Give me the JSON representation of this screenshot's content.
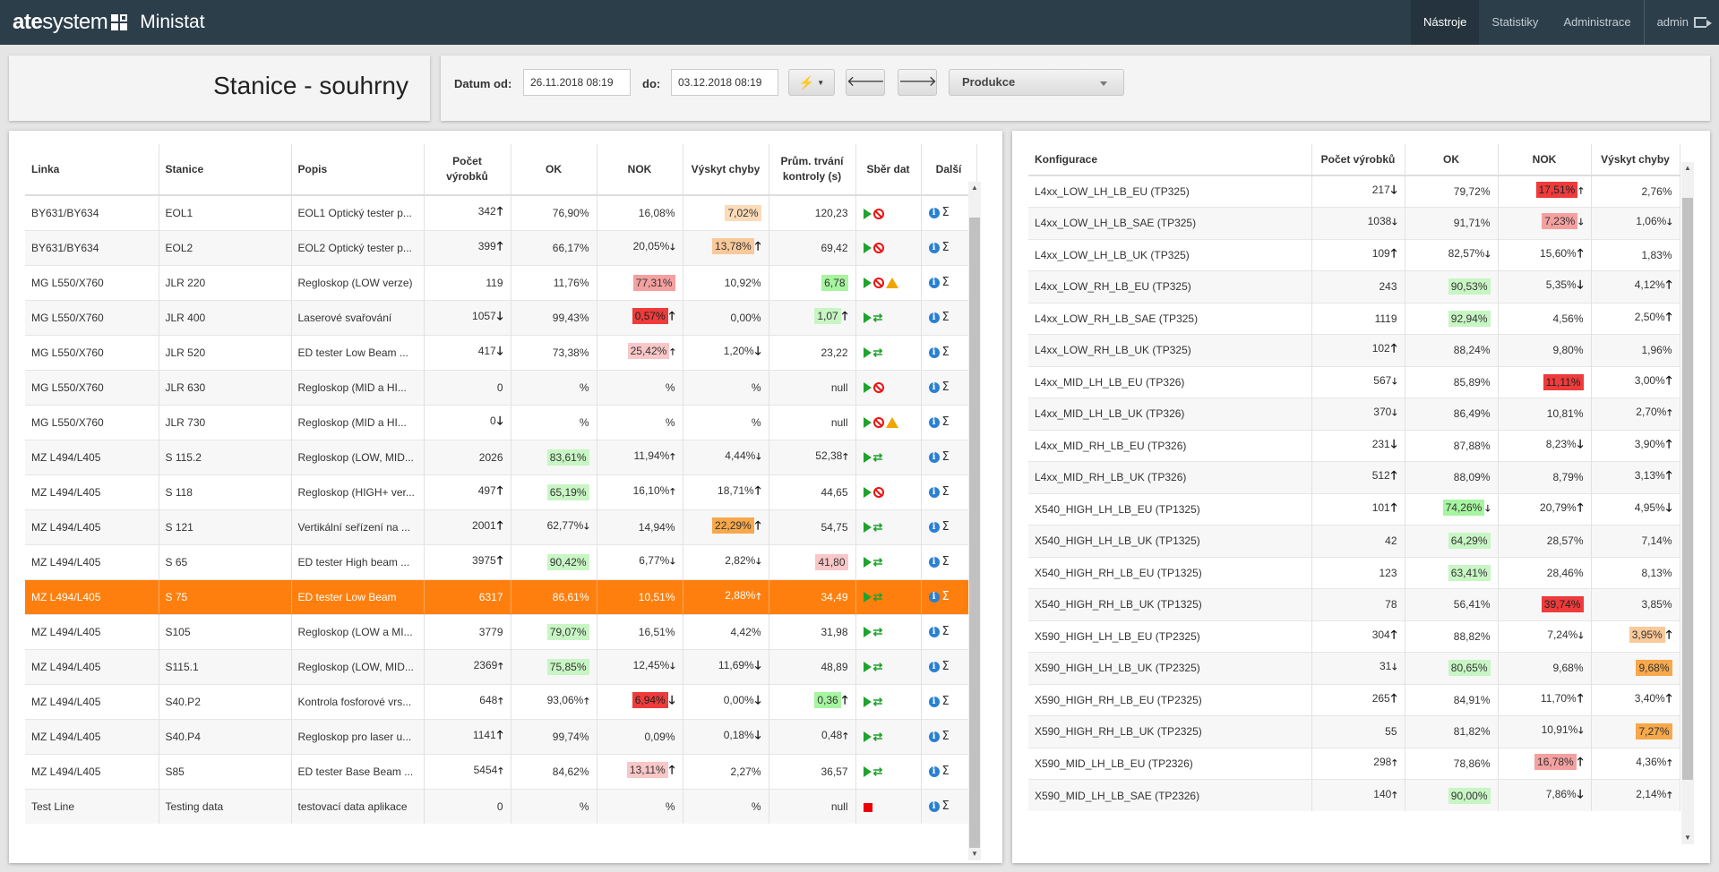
{
  "app": {
    "brand_bold": "ate",
    "brand_light": "system",
    "app_name": "Ministat"
  },
  "nav": {
    "items": [
      "Nástroje",
      "Statistiky",
      "Administrace"
    ],
    "active": "Nástroje",
    "user": "admin"
  },
  "page": {
    "title": "Stanice - souhrny"
  },
  "filter": {
    "from_label": "Datum od:",
    "from_value": "26.11.2018 08:19",
    "to_label": "do:",
    "to_value": "03.12.2018 08:19",
    "quick_icon": "lightning-icon",
    "prev_icon": "arrow-left-icon",
    "next_icon": "arrow-right-icon",
    "select_value": "Produkce"
  },
  "stations_table": {
    "headers": [
      "Linka",
      "Stanice",
      "Popis",
      "Počet výrobků",
      "OK",
      "NOK",
      "Výskyt chyby",
      "Prům. trvání kontroly (s)",
      "Sběr dat",
      "Další"
    ],
    "rows": [
      {
        "linka": "BY631/BY634",
        "stanice": "EOL1",
        "popis": "EOL1 Optický tester p...",
        "pocet": "342",
        "pocet_arrow": "up",
        "ok": "76,90%",
        "ok_arrow": "",
        "ok_hl": "",
        "nok": "16,08%",
        "nok_arrow": "",
        "nok_hl": "",
        "vyskyt": "7,02%",
        "vyskyt_arrow": "",
        "vyskyt_hl": "lorange",
        "prum": "120,23",
        "prum_hl": "",
        "sber": [
          "play",
          "ban"
        ]
      },
      {
        "linka": "BY631/BY634",
        "stanice": "EOL2",
        "popis": "EOL2 Optický tester p...",
        "pocet": "399",
        "pocet_arrow": "up",
        "ok": "66,17%",
        "ok_arrow": "",
        "ok_hl": "",
        "nok": "20,05%",
        "nok_arrow": "down-sm",
        "nok_hl": "",
        "vyskyt": "13,78%",
        "vyskyt_arrow": "up",
        "vyskyt_hl": "peach",
        "prum": "69,42",
        "prum_hl": "",
        "sber": [
          "play",
          "ban"
        ]
      },
      {
        "linka": "MG L550/X760",
        "stanice": "JLR 220",
        "popis": "Regloskop (LOW verze)",
        "pocet": "119",
        "pocet_arrow": "",
        "ok": "11,76%",
        "ok_arrow": "",
        "ok_hl": "",
        "nok": "77,31%",
        "nok_arrow": "",
        "nok_hl": "pink",
        "vyskyt": "10,92%",
        "vyskyt_arrow": "",
        "vyskyt_hl": "",
        "prum": "6,78",
        "prum_hl": "green",
        "sber": [
          "play",
          "ban",
          "warn"
        ]
      },
      {
        "linka": "MG L550/X760",
        "stanice": "JLR 400",
        "popis": "Laserové svařování",
        "pocet": "1057",
        "pocet_arrow": "down",
        "ok": "99,43%",
        "ok_arrow": "",
        "ok_hl": "",
        "nok": "0,57%",
        "nok_arrow": "up",
        "nok_hl": "red",
        "vyskyt": "0,00%",
        "vyskyt_arrow": "",
        "vyskyt_hl": "",
        "prum": "1,07",
        "prum_hl": "lgreen",
        "prum_arrow": "up",
        "sber": [
          "play",
          "sync"
        ]
      },
      {
        "linka": "MG L550/X760",
        "stanice": "JLR 520",
        "popis": "ED tester Low Beam ...",
        "pocet": "417",
        "pocet_arrow": "down",
        "ok": "73,38%",
        "ok_arrow": "",
        "ok_hl": "",
        "nok": "25,42%",
        "nok_arrow": "up-sm",
        "nok_hl": "lpink",
        "vyskyt": "1,20%",
        "vyskyt_arrow": "down",
        "vyskyt_hl": "",
        "prum": "23,22",
        "prum_hl": "",
        "sber": [
          "play",
          "sync"
        ]
      },
      {
        "linka": "MG L550/X760",
        "stanice": "JLR 630",
        "popis": "Regloskop (MID a HI...",
        "pocet": "0",
        "pocet_arrow": "",
        "ok": "%",
        "ok_arrow": "",
        "ok_hl": "",
        "nok": "%",
        "nok_arrow": "",
        "nok_hl": "",
        "vyskyt": "%",
        "vyskyt_arrow": "",
        "vyskyt_hl": "",
        "prum": "null",
        "prum_hl": "",
        "sber": [
          "play",
          "ban"
        ]
      },
      {
        "linka": "MG L550/X760",
        "stanice": "JLR 730",
        "popis": "Regloskop (MID a HI...",
        "pocet": "0",
        "pocet_arrow": "down",
        "ok": "%",
        "ok_arrow": "",
        "ok_hl": "",
        "nok": "%",
        "nok_arrow": "",
        "nok_hl": "",
        "vyskyt": "%",
        "vyskyt_arrow": "",
        "vyskyt_hl": "",
        "prum": "null",
        "prum_hl": "",
        "sber": [
          "play",
          "ban",
          "warn"
        ]
      },
      {
        "linka": "MZ L494/L405",
        "stanice": "S 115.2",
        "popis": "Regloskop (LOW, MID...",
        "pocet": "2026",
        "pocet_arrow": "",
        "ok": "83,61%",
        "ok_arrow": "",
        "ok_hl": "lgreen",
        "nok": "11,94%",
        "nok_arrow": "up-sm",
        "nok_hl": "",
        "vyskyt": "4,44%",
        "vyskyt_arrow": "down-sm",
        "vyskyt_hl": "",
        "prum": "52,38",
        "prum_hl": "",
        "prum_arrow": "up-sm",
        "sber": [
          "play",
          "sync"
        ]
      },
      {
        "linka": "MZ L494/L405",
        "stanice": "S 118",
        "popis": "Regloskop (HIGH+ ver...",
        "pocet": "497",
        "pocet_arrow": "up",
        "ok": "65,19%",
        "ok_arrow": "",
        "ok_hl": "lgreen",
        "nok": "16,10%",
        "nok_arrow": "up-sm",
        "nok_hl": "",
        "vyskyt": "18,71%",
        "vyskyt_arrow": "up",
        "vyskyt_hl": "",
        "prum": "44,65",
        "prum_hl": "",
        "sber": [
          "play",
          "ban"
        ]
      },
      {
        "linka": "MZ L494/L405",
        "stanice": "S 121",
        "popis": "Vertikální seřízení na ...",
        "pocet": "2001",
        "pocet_arrow": "up",
        "ok": "62,77%",
        "ok_arrow": "down-sm",
        "ok_hl": "",
        "nok": "14,94%",
        "nok_arrow": "",
        "nok_hl": "",
        "vyskyt": "22,29%",
        "vyskyt_arrow": "up",
        "vyskyt_hl": "orange",
        "prum": "54,75",
        "prum_hl": "",
        "sber": [
          "play",
          "sync"
        ]
      },
      {
        "linka": "MZ L494/L405",
        "stanice": "S 65",
        "popis": "ED tester High beam ...",
        "pocet": "3975",
        "pocet_arrow": "up",
        "ok": "90,42%",
        "ok_arrow": "",
        "ok_hl": "lgreen",
        "nok": "6,77%",
        "nok_arrow": "down-sm",
        "nok_hl": "",
        "vyskyt": "2,82%",
        "vyskyt_arrow": "down-sm",
        "vyskyt_hl": "",
        "prum": "41,80",
        "prum_hl": "lpink",
        "sber": [
          "play",
          "sync"
        ]
      },
      {
        "linka": "MZ L494/L405",
        "stanice": "S 75",
        "popis": "ED tester Low Beam",
        "pocet": "6317",
        "pocet_arrow": "",
        "ok": "86,61%",
        "ok_arrow": "",
        "ok_hl": "",
        "nok": "10,51%",
        "nok_arrow": "",
        "nok_hl": "",
        "vyskyt": "2,88%",
        "vyskyt_arrow": "up-sm",
        "vyskyt_hl": "",
        "prum": "34,49",
        "prum_hl": "",
        "sber": [
          "play",
          "sync"
        ],
        "selected": true
      },
      {
        "linka": "MZ L494/L405",
        "stanice": "S105",
        "popis": "Regloskop (LOW a MI...",
        "pocet": "3779",
        "pocet_arrow": "",
        "ok": "79,07%",
        "ok_arrow": "",
        "ok_hl": "lgreen",
        "nok": "16,51%",
        "nok_arrow": "",
        "nok_hl": "",
        "vyskyt": "4,42%",
        "vyskyt_arrow": "",
        "vyskyt_hl": "",
        "prum": "31,98",
        "prum_hl": "",
        "sber": [
          "play",
          "sync"
        ]
      },
      {
        "linka": "MZ L494/L405",
        "stanice": "S115.1",
        "popis": "Regloskop (LOW, MID...",
        "pocet": "2369",
        "pocet_arrow": "up-sm",
        "ok": "75,85%",
        "ok_arrow": "",
        "ok_hl": "lgreen",
        "nok": "12,45%",
        "nok_arrow": "down-sm",
        "nok_hl": "",
        "vyskyt": "11,69%",
        "vyskyt_arrow": "down",
        "vyskyt_hl": "",
        "prum": "48,89",
        "prum_hl": "",
        "sber": [
          "play",
          "sync"
        ]
      },
      {
        "linka": "MZ L494/L405",
        "stanice": "S40.P2",
        "popis": "Kontrola fosforové vrs...",
        "pocet": "648",
        "pocet_arrow": "up-sm",
        "ok": "93,06%",
        "ok_arrow": "up-sm",
        "ok_hl": "",
        "nok": "6,94%",
        "nok_arrow": "down",
        "nok_hl": "red",
        "vyskyt": "0,00%",
        "vyskyt_arrow": "down",
        "vyskyt_hl": "",
        "prum": "0,36",
        "prum_hl": "green",
        "prum_arrow": "up",
        "sber": [
          "play",
          "sync"
        ]
      },
      {
        "linka": "MZ L494/L405",
        "stanice": "S40.P4",
        "popis": "Regloskop pro laser u...",
        "pocet": "1141",
        "pocet_arrow": "up",
        "ok": "99,74%",
        "ok_arrow": "",
        "ok_hl": "",
        "nok": "0,09%",
        "nok_arrow": "",
        "nok_hl": "",
        "vyskyt": "0,18%",
        "vyskyt_arrow": "down",
        "vyskyt_hl": "",
        "prum": "0,48",
        "prum_hl": "",
        "prum_arrow": "up-sm",
        "sber": [
          "play",
          "sync"
        ]
      },
      {
        "linka": "MZ L494/L405",
        "stanice": "S85",
        "popis": "ED tester Base Beam ...",
        "pocet": "5454",
        "pocet_arrow": "up-sm",
        "ok": "84,62%",
        "ok_arrow": "",
        "ok_hl": "",
        "nok": "13,11%",
        "nok_arrow": "up",
        "nok_hl": "lpink",
        "vyskyt": "2,27%",
        "vyskyt_arrow": "",
        "vyskyt_hl": "",
        "prum": "36,57",
        "prum_hl": "",
        "sber": [
          "play",
          "sync"
        ]
      },
      {
        "linka": "Test Line",
        "stanice": "Testing data",
        "popis": "testovací data aplikace",
        "pocet": "0",
        "pocet_arrow": "",
        "ok": "%",
        "ok_arrow": "",
        "ok_hl": "",
        "nok": "%",
        "nok_arrow": "",
        "nok_hl": "",
        "vyskyt": "%",
        "vyskyt_arrow": "",
        "vyskyt_hl": "",
        "prum": "null",
        "prum_hl": "",
        "sber": [
          "stop"
        ]
      }
    ]
  },
  "config_table": {
    "headers": [
      "Konfigurace",
      "Počet výrobků",
      "OK",
      "NOK",
      "Výskyt chyby"
    ],
    "rows": [
      {
        "konf": "L4xx_LOW_LH_LB_EU (TP325)",
        "pocet": "217",
        "pocet_arrow": "down",
        "ok": "79,72%",
        "ok_arrow": "",
        "ok_hl": "",
        "nok": "17,51%",
        "nok_arrow": "up-sm",
        "nok_hl": "red",
        "vyskyt": "2,76%",
        "vyskyt_arrow": "",
        "vyskyt_hl": ""
      },
      {
        "konf": "L4xx_LOW_LH_LB_SAE (TP325)",
        "pocet": "1038",
        "pocet_arrow": "down-sm",
        "ok": "91,71%",
        "ok_arrow": "",
        "ok_hl": "",
        "nok": "7,23%",
        "nok_arrow": "down-sm",
        "nok_hl": "pink",
        "vyskyt": "1,06%",
        "vyskyt_arrow": "down-sm",
        "vyskyt_hl": ""
      },
      {
        "konf": "L4xx_LOW_LH_LB_UK (TP325)",
        "pocet": "109",
        "pocet_arrow": "up",
        "ok": "82,57%",
        "ok_arrow": "down-sm",
        "ok_hl": "",
        "nok": "15,60%",
        "nok_arrow": "up",
        "nok_hl": "",
        "vyskyt": "1,83%",
        "vyskyt_arrow": "",
        "vyskyt_hl": ""
      },
      {
        "konf": "L4xx_LOW_RH_LB_EU (TP325)",
        "pocet": "243",
        "pocet_arrow": "",
        "ok": "90,53%",
        "ok_arrow": "",
        "ok_hl": "lgreen",
        "nok": "5,35%",
        "nok_arrow": "down",
        "nok_hl": "",
        "vyskyt": "4,12%",
        "vyskyt_arrow": "up",
        "vyskyt_hl": ""
      },
      {
        "konf": "L4xx_LOW_RH_LB_SAE (TP325)",
        "pocet": "1119",
        "pocet_arrow": "",
        "ok": "92,94%",
        "ok_arrow": "",
        "ok_hl": "lgreen",
        "nok": "4,56%",
        "nok_arrow": "",
        "nok_hl": "",
        "vyskyt": "2,50%",
        "vyskyt_arrow": "up",
        "vyskyt_hl": ""
      },
      {
        "konf": "L4xx_LOW_RH_LB_UK (TP325)",
        "pocet": "102",
        "pocet_arrow": "up",
        "ok": "88,24%",
        "ok_arrow": "",
        "ok_hl": "",
        "nok": "9,80%",
        "nok_arrow": "",
        "nok_hl": "",
        "vyskyt": "1,96%",
        "vyskyt_arrow": "",
        "vyskyt_hl": ""
      },
      {
        "konf": "L4xx_MID_LH_LB_EU (TP326)",
        "pocet": "567",
        "pocet_arrow": "down-sm",
        "ok": "85,89%",
        "ok_arrow": "",
        "ok_hl": "",
        "nok": "11,11%",
        "nok_arrow": "",
        "nok_hl": "red",
        "vyskyt": "3,00%",
        "vyskyt_arrow": "up",
        "vyskyt_hl": ""
      },
      {
        "konf": "L4xx_MID_LH_LB_UK (TP326)",
        "pocet": "370",
        "pocet_arrow": "down-sm",
        "ok": "86,49%",
        "ok_arrow": "",
        "ok_hl": "",
        "nok": "10,81%",
        "nok_arrow": "",
        "nok_hl": "",
        "vyskyt": "2,70%",
        "vyskyt_arrow": "up-sm",
        "vyskyt_hl": ""
      },
      {
        "konf": "L4xx_MID_RH_LB_EU (TP326)",
        "pocet": "231",
        "pocet_arrow": "down",
        "ok": "87,88%",
        "ok_arrow": "",
        "ok_hl": "",
        "nok": "8,23%",
        "nok_arrow": "down",
        "nok_hl": "",
        "vyskyt": "3,90%",
        "vyskyt_arrow": "up",
        "vyskyt_hl": ""
      },
      {
        "konf": "L4xx_MID_RH_LB_UK (TP326)",
        "pocet": "512",
        "pocet_arrow": "up",
        "ok": "88,09%",
        "ok_arrow": "",
        "ok_hl": "",
        "nok": "8,79%",
        "nok_arrow": "",
        "nok_hl": "",
        "vyskyt": "3,13%",
        "vyskyt_arrow": "up",
        "vyskyt_hl": ""
      },
      {
        "konf": "X540_HIGH_LH_LB_EU (TP1325)",
        "pocet": "101",
        "pocet_arrow": "up",
        "ok": "74,26%",
        "ok_arrow": "down-sm",
        "ok_hl": "green",
        "nok": "20,79%",
        "nok_arrow": "up",
        "nok_hl": "",
        "vyskyt": "4,95%",
        "vyskyt_arrow": "down",
        "vyskyt_hl": ""
      },
      {
        "konf": "X540_HIGH_LH_LB_UK (TP1325)",
        "pocet": "42",
        "pocet_arrow": "",
        "ok": "64,29%",
        "ok_arrow": "",
        "ok_hl": "lgreen",
        "nok": "28,57%",
        "nok_arrow": "",
        "nok_hl": "",
        "vyskyt": "7,14%",
        "vyskyt_arrow": "",
        "vyskyt_hl": ""
      },
      {
        "konf": "X540_HIGH_RH_LB_EU (TP1325)",
        "pocet": "123",
        "pocet_arrow": "",
        "ok": "63,41%",
        "ok_arrow": "",
        "ok_hl": "lgreen",
        "nok": "28,46%",
        "nok_arrow": "",
        "nok_hl": "",
        "vyskyt": "8,13%",
        "vyskyt_arrow": "",
        "vyskyt_hl": ""
      },
      {
        "konf": "X540_HIGH_RH_LB_UK (TP1325)",
        "pocet": "78",
        "pocet_arrow": "",
        "ok": "56,41%",
        "ok_arrow": "",
        "ok_hl": "",
        "nok": "39,74%",
        "nok_arrow": "",
        "nok_hl": "red",
        "vyskyt": "3,85%",
        "vyskyt_arrow": "",
        "vyskyt_hl": ""
      },
      {
        "konf": "X590_HIGH_LH_LB_EU (TP2325)",
        "pocet": "304",
        "pocet_arrow": "up",
        "ok": "88,82%",
        "ok_arrow": "",
        "ok_hl": "",
        "nok": "7,24%",
        "nok_arrow": "down-sm",
        "nok_hl": "",
        "vyskyt": "3,95%",
        "vyskyt_arrow": "up",
        "vyskyt_hl": "peach"
      },
      {
        "konf": "X590_HIGH_LH_LB_UK (TP2325)",
        "pocet": "31",
        "pocet_arrow": "down-sm",
        "ok": "80,65%",
        "ok_arrow": "",
        "ok_hl": "lgreen",
        "nok": "9,68%",
        "nok_arrow": "",
        "nok_hl": "",
        "vyskyt": "9,68%",
        "vyskyt_arrow": "",
        "vyskyt_hl": "orange"
      },
      {
        "konf": "X590_HIGH_RH_LB_EU (TP2325)",
        "pocet": "265",
        "pocet_arrow": "up",
        "ok": "84,91%",
        "ok_arrow": "",
        "ok_hl": "",
        "nok": "11,70%",
        "nok_arrow": "up",
        "nok_hl": "",
        "vyskyt": "3,40%",
        "vyskyt_arrow": "up",
        "vyskyt_hl": ""
      },
      {
        "konf": "X590_HIGH_RH_LB_UK (TP2325)",
        "pocet": "55",
        "pocet_arrow": "",
        "ok": "81,82%",
        "ok_arrow": "",
        "ok_hl": "",
        "nok": "10,91%",
        "nok_arrow": "down-sm",
        "nok_hl": "",
        "vyskyt": "7,27%",
        "vyskyt_arrow": "",
        "vyskyt_hl": "orange"
      },
      {
        "konf": "X590_MID_LH_LB_EU (TP2326)",
        "pocet": "298",
        "pocet_arrow": "up-sm",
        "ok": "78,86%",
        "ok_arrow": "",
        "ok_hl": "",
        "nok": "16,78%",
        "nok_arrow": "up",
        "nok_hl": "pink",
        "vyskyt": "4,36%",
        "vyskyt_arrow": "up-sm",
        "vyskyt_hl": ""
      },
      {
        "konf": "X590_MID_LH_LB_SAE (TP2326)",
        "pocet": "140",
        "pocet_arrow": "up-sm",
        "ok": "90,00%",
        "ok_arrow": "",
        "ok_hl": "lgreen",
        "nok": "7,86%",
        "nok_arrow": "down",
        "nok_hl": "",
        "vyskyt": "2,14%",
        "vyskyt_arrow": "up-sm",
        "vyskyt_hl": ""
      }
    ]
  },
  "colors": {
    "navbar": "#2c3e4a",
    "selected_row": "#ff7f0e",
    "green_highlight": "#a6f5a0",
    "red_highlight": "#ee3b3b",
    "orange_highlight": "#f7a84a"
  }
}
